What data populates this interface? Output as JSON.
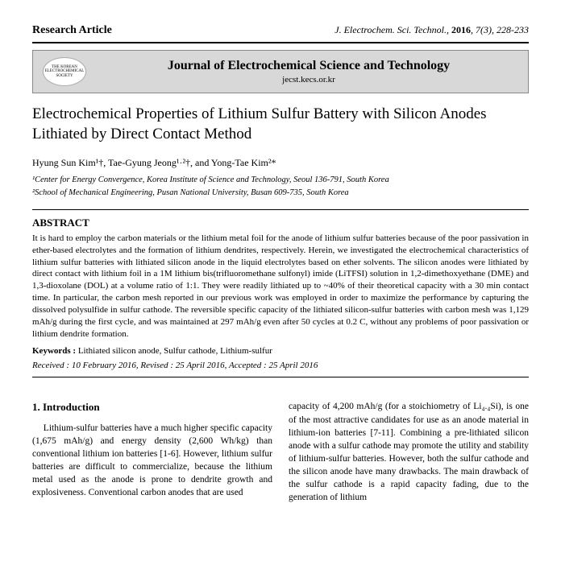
{
  "header": {
    "article_type": "Research Article",
    "citation_journal": "J. Electrochem. Sci. Technol.,",
    "citation_year": "2016",
    "citation_issue": ", 7(3), 228-233"
  },
  "banner": {
    "logo_line1": "THE KOREAN",
    "logo_line2": "ELECTROCHEMICAL",
    "logo_line3": "SOCIETY",
    "journal_name": "Journal of Electrochemical Science and Technology",
    "journal_url": "jecst.kecs.or.kr"
  },
  "title": "Electrochemical Properties of Lithium Sulfur Battery with Silicon Anodes Lithiated by Direct Contact Method",
  "authors_html": "Hyung Sun Kim¹†, Tae-Gyung Jeong¹·²†, and Yong-Tae Kim²*",
  "affiliations": {
    "a1": "¹Center for Energy Convergence, Korea Institute of Science and Technology, Seoul 136-791, South Korea",
    "a2": "²School of Mechanical Engineering, Pusan National University, Busan 609-735, South Korea"
  },
  "abstract": {
    "heading": "ABSTRACT",
    "text": "It is hard to employ the carbon materials or the lithium metal foil for the anode of lithium sulfur batteries because of the poor passivation in ether-based electrolytes and the formation of lithium dendrites, respectively. Herein, we investigated the electrochemical characteristics of lithium sulfur batteries with lithiated silicon anode in the liquid electrolytes based on ether solvents. The silicon anodes were lithiated by direct contact with lithium foil in a 1M lithium bis(trifluoromethane sulfonyl) imide (LiTFSI) solution in 1,2-dimethoxyethane (DME) and 1,3-dioxolane (DOL) at a volume ratio of 1:1. They were readily lithiated up to ~40% of their theoretical capacity with a 30 min contact time. In particular, the carbon mesh reported in our previous work was employed in order to maximize the performance by capturing the dissolved polysulfide in sulfur cathode. The reversible specific capacity of the lithiated silicon-sulfur batteries with carbon mesh was 1,129 mAh/g during the first cycle, and was maintained at 297 mAh/g even after 50 cycles at 0.2 C, without any problems of poor passivation or lithium dendrite formation.",
    "keywords_label": "Keywords :",
    "keywords": "Lithiated silicon anode, Sulfur cathode, Lithium-sulfur",
    "dates": "Received : 10 February 2016, Revised : 25 April 2016, Accepted : 25 April 2016"
  },
  "intro": {
    "heading": "1. Introduction",
    "col1": "Lithium-sulfur batteries have a much higher specific capacity (1,675 mAh/g) and energy density (2,600 Wh/kg) than conventional lithium ion batteries [1-6]. However, lithium sulfur batteries are difficult to commercialize, because the lithium metal used as the anode is prone to dendrite growth and explosiveness. Conventional carbon anodes that are used",
    "col2": "capacity of 4,200 mAh/g (for a stoichiometry of Li₄.₄Si), is one of the most attractive candidates for use as an anode material in lithium-ion batteries [7-11]. Combining a pre-lithiated silicon anode with a sulfur cathode may promote the utility and stability of lithium-sulfur batteries. However, both the sulfur cathode and the silicon anode have many drawbacks. The main drawback of the sulfur cathode is a rapid capacity fading, due to the generation of lithium"
  }
}
